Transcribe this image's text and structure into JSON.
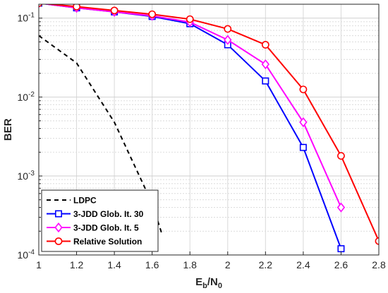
{
  "chart_data": {
    "type": "line",
    "xlabel_main": "E",
    "xlabel_sub1": "b",
    "xlabel_mid": "/N",
    "xlabel_sub2": "0",
    "ylabel": "BER",
    "xlim": [
      1,
      2.8
    ],
    "ylim": [
      0.0001,
      0.15
    ],
    "y_scale": "log",
    "grid": true,
    "legend_position": "bottom-left",
    "x_ticks": [
      "1",
      "1.2",
      "1.4",
      "1.6",
      "1.8",
      "2",
      "2.2",
      "2.4",
      "2.6",
      "2.8"
    ],
    "x_tick_values": [
      1,
      1.2,
      1.4,
      1.6,
      1.8,
      2,
      2.2,
      2.4,
      2.6,
      2.8
    ],
    "y_ticks": [
      {
        "base": "10",
        "exp": "-1",
        "value": 0.1
      },
      {
        "base": "10",
        "exp": "-2",
        "value": 0.01
      },
      {
        "base": "10",
        "exp": "-3",
        "value": 0.001
      },
      {
        "base": "10",
        "exp": "-4",
        "value": 0.0001
      }
    ],
    "series": [
      {
        "name": "LDPC",
        "color": "#000000",
        "dash": "6,5",
        "marker": "none",
        "x": [
          1.0,
          1.2,
          1.4,
          1.6,
          1.65
        ],
        "y": [
          0.06,
          0.027,
          0.0048,
          0.00045,
          0.00019
        ]
      },
      {
        "name": "3-JDD Glob. It. 30",
        "color": "#0000ff",
        "dash": "",
        "marker": "square",
        "x": [
          1.0,
          1.2,
          1.4,
          1.6,
          1.8,
          2.0,
          2.2,
          2.4,
          2.6
        ],
        "y": [
          0.155,
          0.135,
          0.12,
          0.105,
          0.085,
          0.046,
          0.016,
          0.0023,
          0.00012
        ]
      },
      {
        "name": "3-JDD Glob. It. 5",
        "color": "#ff00ff",
        "dash": "",
        "marker": "diamond",
        "x": [
          1.0,
          1.2,
          1.4,
          1.6,
          1.8,
          2.0,
          2.2,
          2.4,
          2.6
        ],
        "y": [
          0.155,
          0.135,
          0.12,
          0.107,
          0.089,
          0.053,
          0.026,
          0.0048,
          0.0004
        ]
      },
      {
        "name": "Relative Solution",
        "color": "#ff0000",
        "dash": "",
        "marker": "circle",
        "x": [
          1.0,
          1.2,
          1.4,
          1.6,
          1.8,
          2.0,
          2.2,
          2.4,
          2.6,
          2.8
        ],
        "y": [
          0.155,
          0.14,
          0.125,
          0.112,
          0.097,
          0.073,
          0.046,
          0.0125,
          0.0018,
          0.00015
        ]
      }
    ]
  }
}
